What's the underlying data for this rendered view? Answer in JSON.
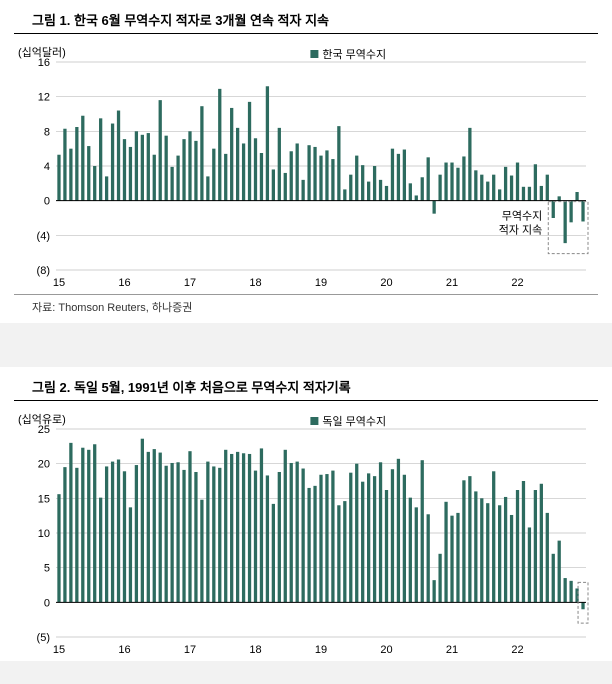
{
  "chart1": {
    "type": "bar",
    "title": "그림 1. 한국 6월 무역수지 적자로 3개월 연속 적자 지속",
    "y_unit_label": "(십억달러)",
    "legend_label": "한국 무역수지",
    "annotation_text": "무역수지\n적자 지속",
    "source": "자료: Thomson Reuters, 하나증권",
    "x_labels": [
      "15",
      "16",
      "17",
      "18",
      "19",
      "20",
      "21",
      "22"
    ],
    "ylim": [
      -8,
      16
    ],
    "ytick_step": 4,
    "y_tick_labels": [
      "(8)",
      "(4)",
      "0",
      "4",
      "8",
      "12",
      "16"
    ],
    "bar_color": "#2d6b5f",
    "grid_color": "#bfbfbf",
    "axis_color": "#000000",
    "background_color": "#ffffff",
    "annotation_border": "#888888",
    "font_color": "#000000",
    "label_fontsize": 11,
    "values": [
      5.3,
      8.3,
      6.0,
      8.5,
      9.8,
      6.3,
      4.0,
      9.5,
      2.8,
      8.9,
      10.4,
      7.1,
      6.2,
      8.0,
      7.6,
      7.8,
      5.3,
      11.6,
      7.5,
      3.9,
      5.2,
      7.1,
      8.0,
      6.9,
      10.9,
      2.8,
      6.0,
      12.9,
      5.4,
      10.7,
      8.4,
      6.6,
      11.4,
      7.2,
      5.5,
      13.2,
      3.6,
      8.4,
      3.2,
      5.7,
      6.6,
      2.4,
      6.4,
      6.2,
      5.2,
      5.8,
      4.8,
      8.6,
      1.3,
      3.0,
      5.2,
      4.1,
      2.2,
      4.0,
      2.4,
      1.7,
      6.0,
      5.4,
      5.9,
      2.0,
      0.6,
      2.7,
      5.0,
      -1.5,
      3.0,
      4.4,
      4.4,
      3.8,
      5.1,
      8.4,
      3.5,
      3.0,
      2.2,
      3.0,
      1.3,
      3.9,
      2.9,
      4.4,
      1.6,
      1.6,
      4.2,
      1.7,
      3.0,
      -2.0,
      0.5,
      -4.9,
      -2.5,
      1.0,
      -2.4
    ]
  },
  "chart2": {
    "type": "bar",
    "title": "그림 2. 독일 5월, 1991년 이후 처음으로 무역수지 적자기록",
    "y_unit_label": "(십억유로)",
    "legend_label": "독일 무역수지",
    "x_labels": [
      "15",
      "16",
      "17",
      "18",
      "19",
      "20",
      "21",
      "22"
    ],
    "ylim": [
      -5,
      25
    ],
    "ytick_step": 5,
    "y_tick_labels": [
      "(5)",
      "0",
      "5",
      "10",
      "15",
      "20",
      "25"
    ],
    "bar_color": "#2d6b5f",
    "grid_color": "#bfbfbf",
    "axis_color": "#000000",
    "background_color": "#ffffff",
    "annotation_border": "#888888",
    "font_color": "#000000",
    "label_fontsize": 11,
    "values": [
      15.6,
      19.5,
      23.0,
      19.4,
      22.3,
      22.0,
      22.8,
      15.1,
      19.6,
      20.3,
      20.6,
      18.9,
      13.7,
      19.8,
      23.6,
      21.7,
      22.1,
      21.6,
      19.7,
      20.1,
      20.2,
      19.1,
      21.8,
      18.8,
      14.8,
      20.3,
      19.6,
      19.4,
      22.0,
      21.4,
      21.7,
      21.5,
      21.4,
      19.0,
      22.2,
      18.3,
      14.2,
      18.8,
      22.0,
      20.1,
      20.3,
      19.3,
      16.5,
      16.8,
      18.4,
      18.5,
      19.0,
      14.0,
      14.6,
      18.7,
      20.0,
      17.4,
      18.6,
      18.2,
      20.2,
      16.2,
      19.2,
      20.7,
      18.4,
      15.1,
      13.7,
      20.5,
      12.7,
      3.2,
      7.0,
      14.5,
      12.5,
      12.9,
      17.6,
      18.2,
      16.0,
      15.0,
      14.3,
      18.9,
      14.0,
      15.2,
      12.6,
      16.2,
      17.5,
      10.8,
      16.2,
      17.1,
      12.9,
      7.0,
      8.9,
      3.5,
      3.1,
      2.0,
      -1.0
    ]
  }
}
